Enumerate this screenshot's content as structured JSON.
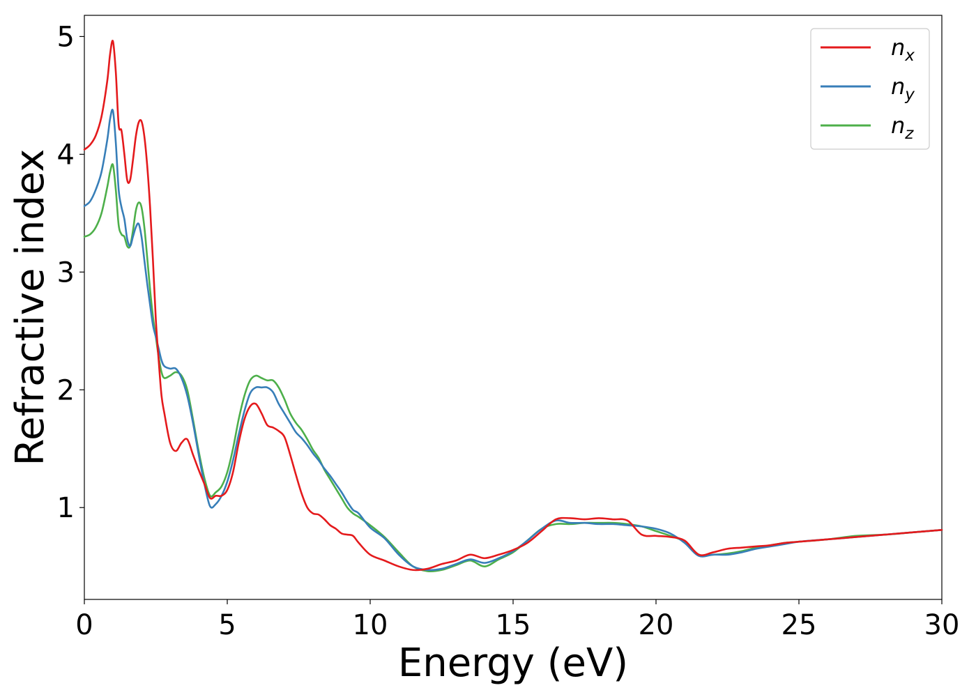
{
  "chart_data": {
    "type": "line",
    "title": "",
    "xlabel": "Energy (eV)",
    "ylabel": "Refractive index",
    "xlim": [
      0,
      30
    ],
    "ylim": [
      0.22,
      5.18
    ],
    "xticks": [
      0,
      5,
      10,
      15,
      20,
      25,
      30
    ],
    "yticks": [
      1,
      2,
      3,
      4,
      5
    ],
    "grid": false,
    "legend_position": "top-right",
    "series": [
      {
        "name": "n",
        "subscript": "x",
        "color": "#e41a1c",
        "x": [
          0,
          0.2,
          0.4,
          0.6,
          0.8,
          0.9,
          1.0,
          1.1,
          1.2,
          1.3,
          1.4,
          1.5,
          1.6,
          1.7,
          1.8,
          1.9,
          2.0,
          2.1,
          2.2,
          2.3,
          2.4,
          2.5,
          2.6,
          2.7,
          2.8,
          3.0,
          3.2,
          3.4,
          3.6,
          3.8,
          4.0,
          4.2,
          4.4,
          4.6,
          4.8,
          5.0,
          5.2,
          5.4,
          5.6,
          5.8,
          6.0,
          6.2,
          6.4,
          6.6,
          6.8,
          7.0,
          7.2,
          7.4,
          7.6,
          7.8,
          8.0,
          8.2,
          8.4,
          8.6,
          8.8,
          9.0,
          9.2,
          9.4,
          9.6,
          10.0,
          10.5,
          11.0,
          11.5,
          12.0,
          12.5,
          13.0,
          13.5,
          14.0,
          14.5,
          15.0,
          15.5,
          16.0,
          16.5,
          17.0,
          17.5,
          18.0,
          18.5,
          19.0,
          19.5,
          20.0,
          20.5,
          21.0,
          21.5,
          22.0,
          22.5,
          23.0,
          23.5,
          24.0,
          24.5,
          25.0,
          26.0,
          27.0,
          28.0,
          29.0,
          30.0
        ],
        "y": [
          4.04,
          4.08,
          4.16,
          4.32,
          4.62,
          4.85,
          4.96,
          4.7,
          4.25,
          4.2,
          4.0,
          3.78,
          3.78,
          3.95,
          4.15,
          4.27,
          4.28,
          4.15,
          3.9,
          3.55,
          3.1,
          2.6,
          2.25,
          1.95,
          1.8,
          1.55,
          1.48,
          1.55,
          1.58,
          1.45,
          1.32,
          1.2,
          1.08,
          1.1,
          1.1,
          1.15,
          1.3,
          1.55,
          1.75,
          1.86,
          1.88,
          1.8,
          1.7,
          1.68,
          1.65,
          1.6,
          1.45,
          1.28,
          1.12,
          1.0,
          0.95,
          0.94,
          0.9,
          0.85,
          0.82,
          0.78,
          0.77,
          0.76,
          0.7,
          0.6,
          0.55,
          0.5,
          0.47,
          0.48,
          0.52,
          0.55,
          0.6,
          0.57,
          0.6,
          0.64,
          0.7,
          0.8,
          0.9,
          0.91,
          0.9,
          0.91,
          0.9,
          0.89,
          0.77,
          0.76,
          0.75,
          0.72,
          0.6,
          0.62,
          0.65,
          0.66,
          0.67,
          0.68,
          0.7,
          0.71,
          0.73,
          0.75,
          0.77,
          0.79,
          0.81
        ]
      },
      {
        "name": "n",
        "subscript": "y",
        "color": "#377eb8",
        "x": [
          0,
          0.2,
          0.4,
          0.6,
          0.8,
          0.9,
          1.0,
          1.1,
          1.2,
          1.3,
          1.4,
          1.5,
          1.6,
          1.7,
          1.8,
          1.9,
          2.0,
          2.1,
          2.2,
          2.3,
          2.4,
          2.5,
          2.6,
          2.7,
          2.8,
          3.0,
          3.2,
          3.4,
          3.6,
          3.8,
          4.0,
          4.2,
          4.4,
          4.6,
          4.8,
          5.0,
          5.2,
          5.4,
          5.6,
          5.8,
          6.0,
          6.2,
          6.4,
          6.6,
          6.8,
          7.0,
          7.2,
          7.4,
          7.6,
          7.8,
          8.0,
          8.2,
          8.4,
          8.6,
          8.8,
          9.0,
          9.2,
          9.4,
          9.6,
          10.0,
          10.5,
          11.0,
          11.5,
          12.0,
          12.5,
          13.0,
          13.5,
          14.0,
          14.5,
          15.0,
          15.5,
          16.0,
          16.5,
          17.0,
          17.5,
          18.0,
          18.5,
          19.0,
          19.5,
          20.0,
          20.5,
          21.0,
          21.5,
          22.0,
          22.5,
          23.0,
          23.5,
          24.0,
          24.5,
          25.0,
          26.0,
          27.0,
          28.0,
          29.0,
          30.0
        ],
        "y": [
          3.56,
          3.6,
          3.7,
          3.85,
          4.12,
          4.3,
          4.37,
          4.1,
          3.7,
          3.55,
          3.45,
          3.28,
          3.22,
          3.3,
          3.38,
          3.41,
          3.3,
          3.1,
          2.9,
          2.72,
          2.55,
          2.45,
          2.35,
          2.25,
          2.2,
          2.18,
          2.18,
          2.1,
          1.95,
          1.72,
          1.45,
          1.2,
          1.01,
          1.03,
          1.1,
          1.22,
          1.4,
          1.62,
          1.82,
          1.97,
          2.02,
          2.02,
          2.02,
          1.98,
          1.88,
          1.8,
          1.72,
          1.64,
          1.59,
          1.53,
          1.46,
          1.4,
          1.33,
          1.27,
          1.2,
          1.13,
          1.05,
          0.98,
          0.95,
          0.83,
          0.74,
          0.6,
          0.5,
          0.47,
          0.48,
          0.52,
          0.56,
          0.53,
          0.57,
          0.63,
          0.72,
          0.82,
          0.89,
          0.87,
          0.87,
          0.86,
          0.86,
          0.85,
          0.84,
          0.82,
          0.78,
          0.7,
          0.59,
          0.6,
          0.6,
          0.62,
          0.65,
          0.67,
          0.69,
          0.71,
          0.73,
          0.75,
          0.77,
          0.79,
          0.81
        ]
      },
      {
        "name": "n",
        "subscript": "z",
        "color": "#4daf4a",
        "x": [
          0,
          0.2,
          0.4,
          0.6,
          0.8,
          0.9,
          1.0,
          1.1,
          1.2,
          1.3,
          1.4,
          1.5,
          1.6,
          1.7,
          1.8,
          1.9,
          2.0,
          2.1,
          2.2,
          2.3,
          2.4,
          2.5,
          2.6,
          2.7,
          2.8,
          3.0,
          3.2,
          3.4,
          3.6,
          3.8,
          4.0,
          4.2,
          4.4,
          4.6,
          4.8,
          5.0,
          5.2,
          5.4,
          5.6,
          5.8,
          6.0,
          6.2,
          6.4,
          6.6,
          6.8,
          7.0,
          7.2,
          7.4,
          7.6,
          7.8,
          8.0,
          8.2,
          8.4,
          8.6,
          8.8,
          9.0,
          9.2,
          9.4,
          9.6,
          10.0,
          10.5,
          11.0,
          11.5,
          12.0,
          12.5,
          13.0,
          13.5,
          14.0,
          14.5,
          15.0,
          15.5,
          16.0,
          16.5,
          17.0,
          17.5,
          18.0,
          18.5,
          19.0,
          19.5,
          20.0,
          20.5,
          21.0,
          21.5,
          22.0,
          22.5,
          23.0,
          23.5,
          24.0,
          24.5,
          25.0,
          26.0,
          27.0,
          28.0,
          29.0,
          30.0
        ],
        "y": [
          3.3,
          3.32,
          3.38,
          3.5,
          3.72,
          3.85,
          3.91,
          3.7,
          3.4,
          3.32,
          3.3,
          3.22,
          3.22,
          3.35,
          3.52,
          3.59,
          3.55,
          3.38,
          3.12,
          2.85,
          2.62,
          2.45,
          2.28,
          2.15,
          2.1,
          2.12,
          2.15,
          2.12,
          2.0,
          1.75,
          1.48,
          1.25,
          1.1,
          1.13,
          1.18,
          1.3,
          1.5,
          1.75,
          1.95,
          2.08,
          2.12,
          2.1,
          2.08,
          2.08,
          2.02,
          1.92,
          1.8,
          1.72,
          1.66,
          1.58,
          1.49,
          1.42,
          1.32,
          1.24,
          1.16,
          1.08,
          1.0,
          0.95,
          0.92,
          0.85,
          0.75,
          0.62,
          0.5,
          0.46,
          0.47,
          0.51,
          0.55,
          0.5,
          0.56,
          0.62,
          0.72,
          0.82,
          0.86,
          0.86,
          0.87,
          0.87,
          0.87,
          0.86,
          0.84,
          0.8,
          0.76,
          0.71,
          0.6,
          0.6,
          0.61,
          0.63,
          0.66,
          0.68,
          0.7,
          0.71,
          0.73,
          0.76,
          0.77,
          0.79,
          0.81
        ]
      }
    ]
  }
}
